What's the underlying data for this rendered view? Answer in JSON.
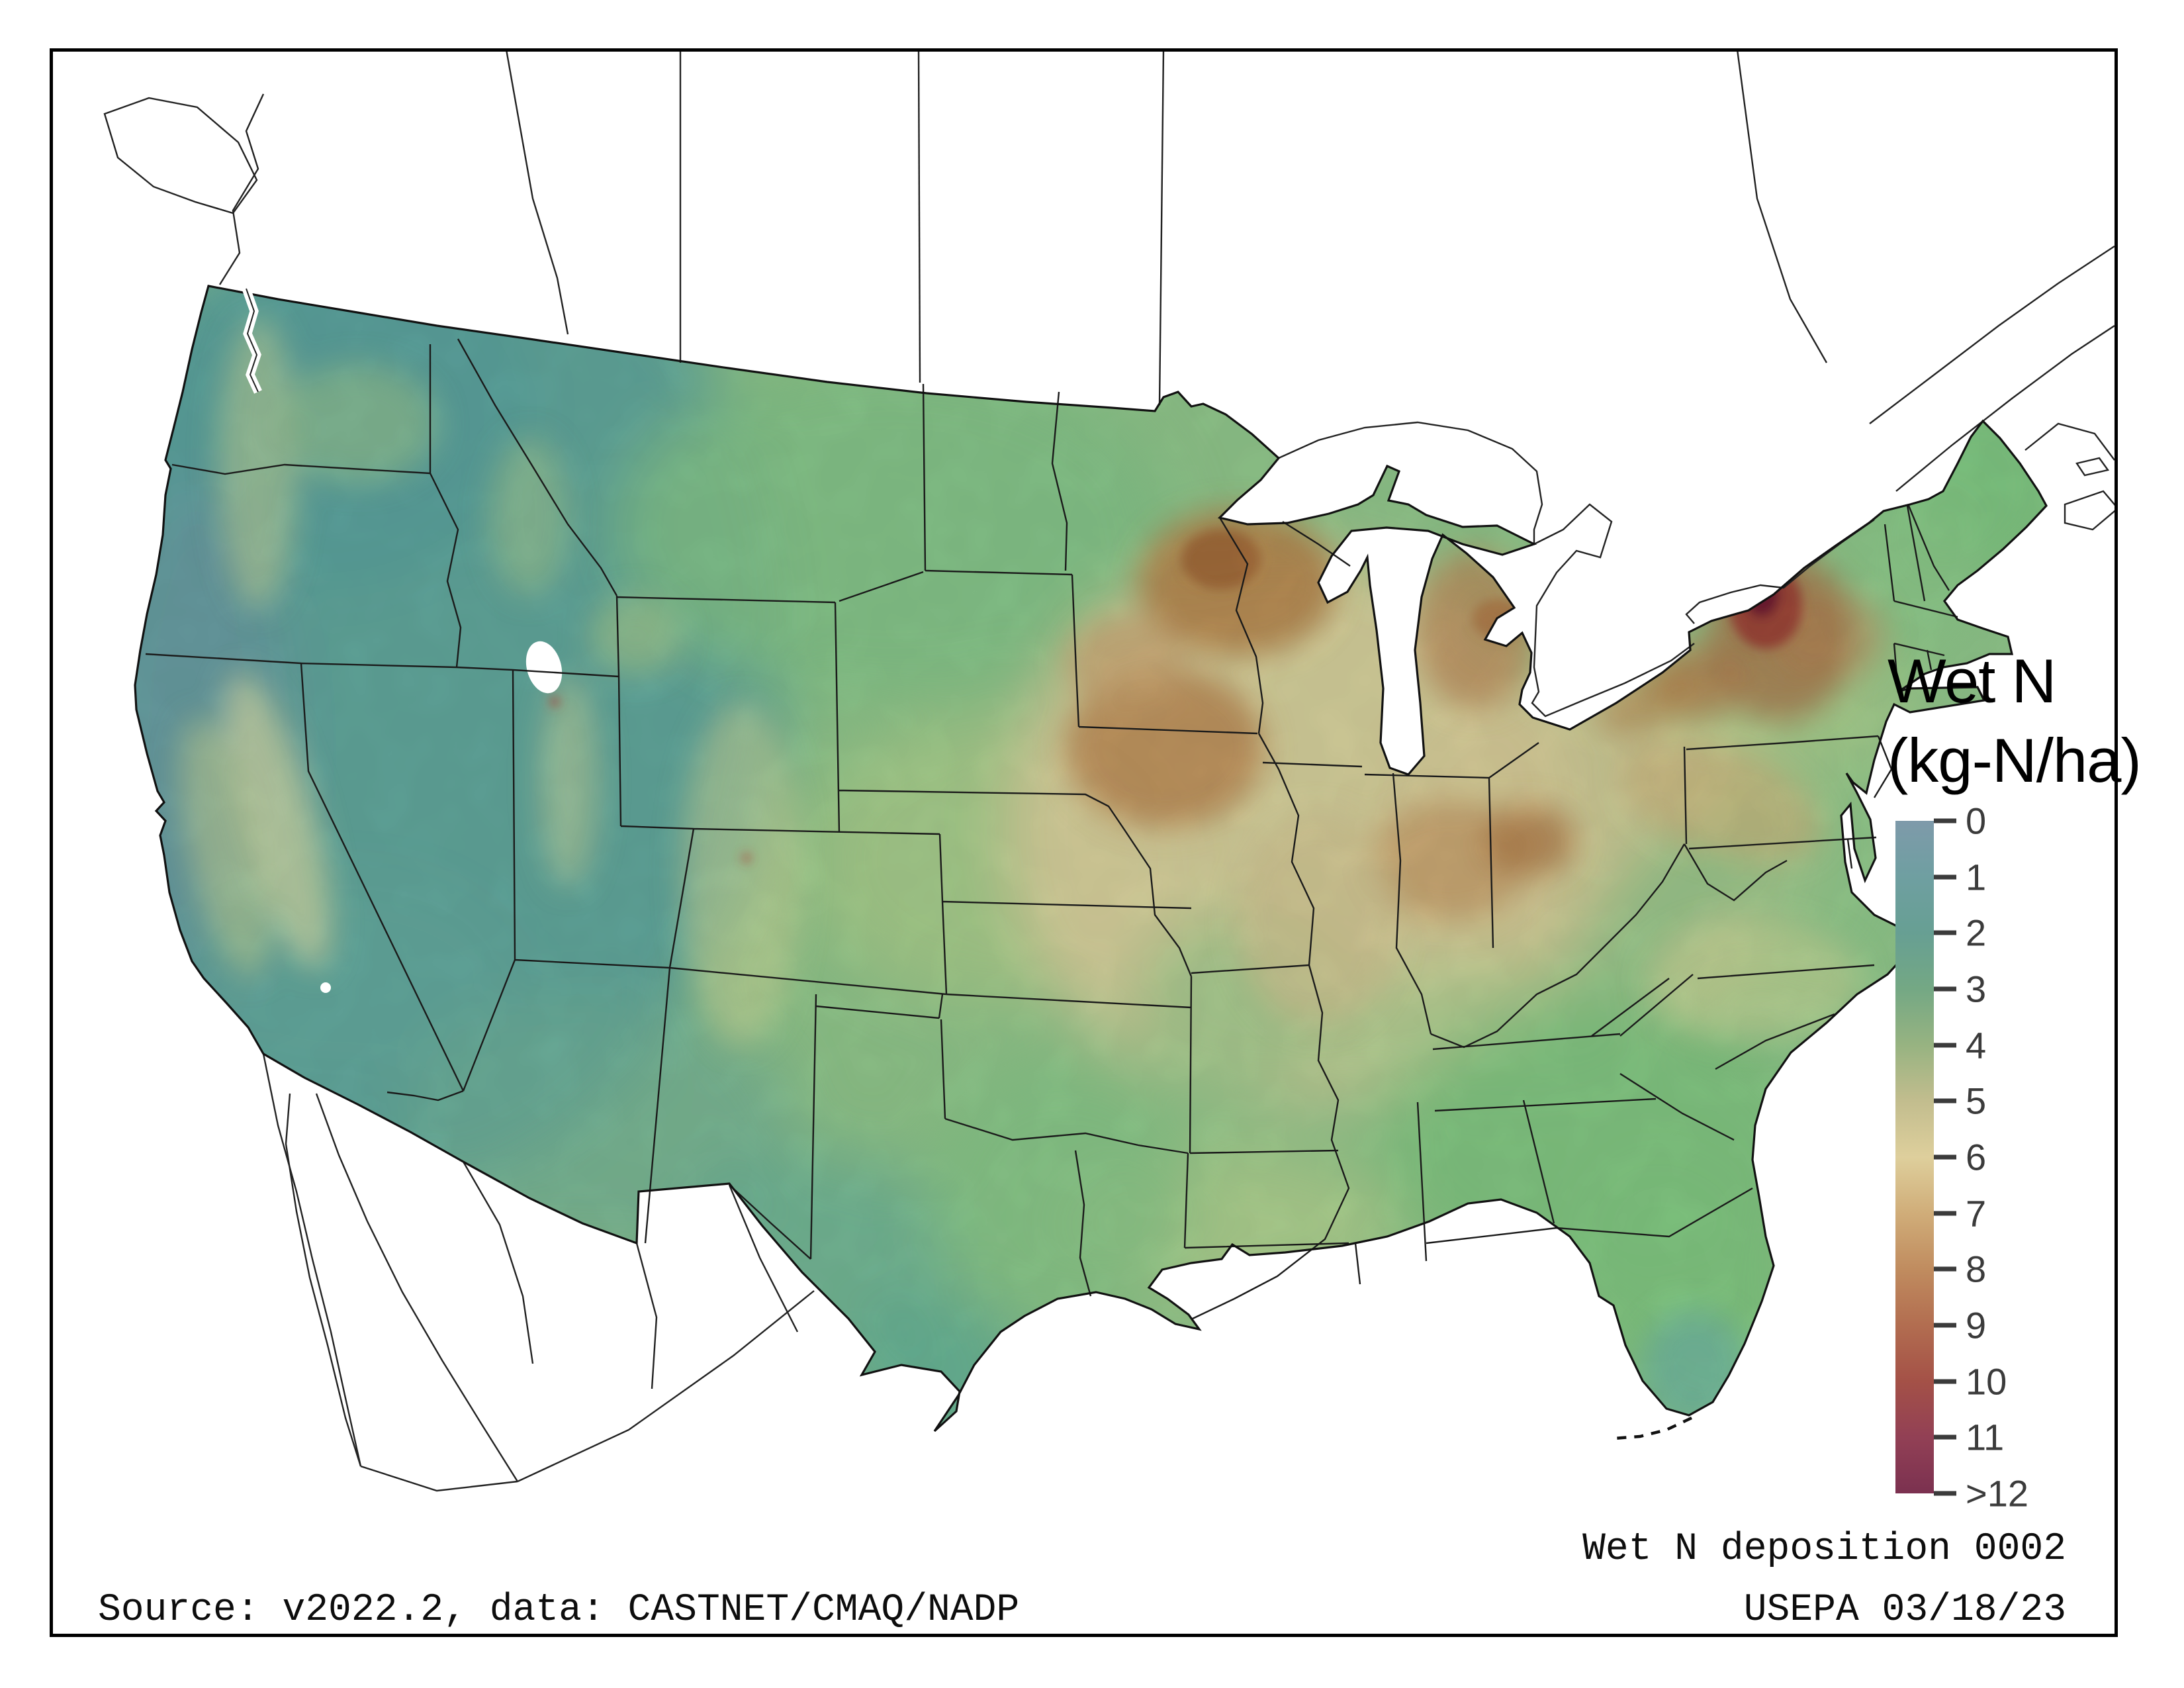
{
  "legend": {
    "title_line1": "Wet N",
    "title_line2": "(kg-N/ha)",
    "units": "kg-N/ha",
    "ticks": [
      "0",
      "1",
      "2",
      "3",
      "4",
      "5",
      "6",
      "7",
      "8",
      "9",
      "10",
      "11",
      ">12"
    ],
    "colorbar_stops": [
      {
        "value": "0",
        "color": "#7e9aaa"
      },
      {
        "value": "1",
        "color": "#6f9fa1"
      },
      {
        "value": "2",
        "color": "#679f93"
      },
      {
        "value": "3",
        "color": "#74a884"
      },
      {
        "value": "4",
        "color": "#97b381"
      },
      {
        "value": "5",
        "color": "#c2bd8e"
      },
      {
        "value": "6",
        "color": "#decf9c"
      },
      {
        "value": "7",
        "color": "#d0ad79"
      },
      {
        "value": "8",
        "color": "#c08c5f"
      },
      {
        "value": "9",
        "color": "#b26d50"
      },
      {
        "value": "10",
        "color": "#a45147"
      },
      {
        "value": "11",
        "color": "#924055"
      },
      {
        "value": ">12",
        "color": "#7b3150"
      }
    ],
    "tick_color": "#3b3b3b"
  },
  "footer": {
    "right_line1": "Wet N deposition 0002",
    "right_line2": "USEPA 03/18/23",
    "source": "Source: v2022.2, data: CASTNET/CMAQ/NADP"
  },
  "map": {
    "frame_color": "#000000",
    "land_outside_color": "#ffffff",
    "boundary_color": "#1a1a1a",
    "palette_notes": {
      "west_low_deposition_teal": "#5da39b",
      "plains_green": "#82c287",
      "midwest_high_khaki": "#d9ce9b",
      "midwest_hotspot_brown": "#b28049",
      "ny_tug_hill_maximum_maroon": "#6d1f30",
      "southeast_green": "#7fc37f"
    }
  }
}
